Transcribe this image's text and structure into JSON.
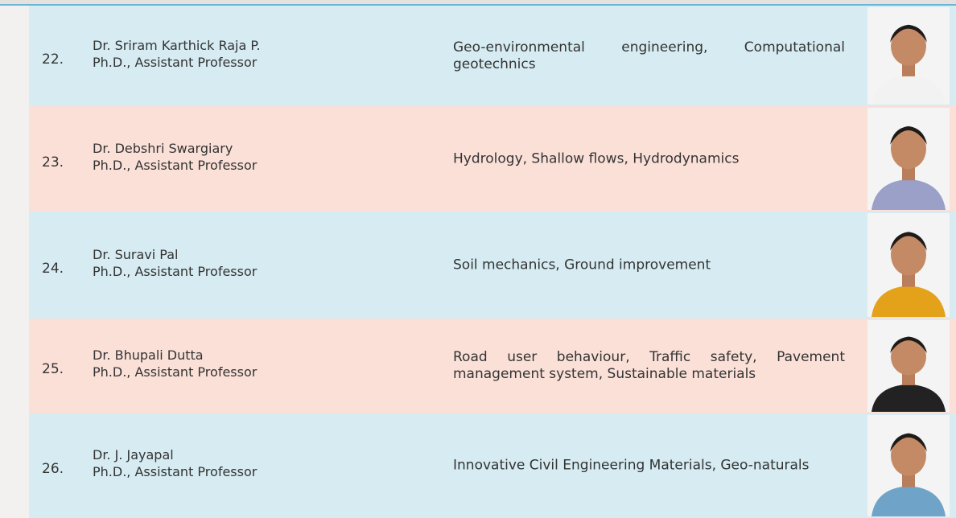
{
  "table": {
    "rows": [
      {
        "number": "22.",
        "name": "Dr. Sriram Karthick Raja P.",
        "designation": "Ph.D., Assistant Professor",
        "research": "Geo-environmental engineering, Computational geotechnics"
      },
      {
        "number": "23.",
        "name": "Dr. Debshri Swargiary",
        "designation": "Ph.D., Assistant Professor",
        "research": "Hydrology, Shallow flows, Hydrodynamics"
      },
      {
        "number": "24.",
        "name": "Dr. Suravi Pal",
        "designation": "Ph.D., Assistant Professor",
        "research": "Soil mechanics, Ground improvement"
      },
      {
        "number": "25.",
        "name": "Dr. Bhupali Dutta",
        "designation": "Ph.D., Assistant Professor",
        "research": "Road user behaviour, Traffic safety, Pavement management system, Sustainable materials"
      },
      {
        "number": "26.",
        "name": "Dr. J. Jayapal",
        "designation": "Ph.D., Assistant Professor",
        "research": "Innovative Civil Engineering Materials, Geo-naturals"
      }
    ]
  }
}
